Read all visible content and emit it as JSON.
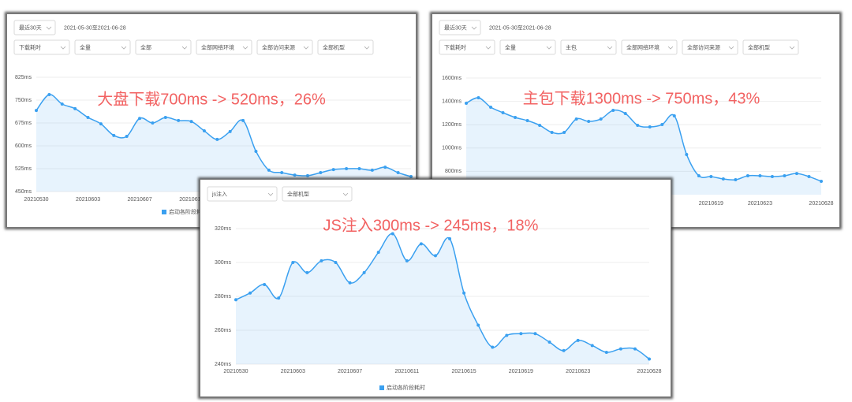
{
  "chart_data": [
    {
      "type": "line",
      "date_range": "2021-05-30至2021-06-28",
      "filters": [
        [
          "最近30天"
        ],
        [
          "下载耗时",
          "全量",
          "全部",
          "全部网络环境",
          "全部访问来源",
          "全部机型"
        ]
      ],
      "annotation": "大盘下载700ms -> 520ms，26%",
      "categories": [
        "20210530",
        null,
        null,
        null,
        "20210603",
        null,
        null,
        null,
        "20210607",
        null,
        null,
        null,
        "20210611",
        null,
        null,
        null,
        null,
        null,
        null,
        null,
        null,
        null,
        null,
        null,
        null,
        null,
        null,
        null,
        null,
        null
      ],
      "series": [
        {
          "name": "启动各阶段耗时",
          "color": "#3aa0f0",
          "values": [
            716,
            768,
            737,
            722,
            693,
            672,
            634,
            631,
            690,
            675,
            693,
            683,
            680,
            649,
            621,
            647,
            683,
            582,
            520,
            512,
            504,
            502,
            512,
            522,
            525,
            525,
            520,
            530,
            512,
            499
          ]
        }
      ],
      "ylim": [
        450,
        825
      ],
      "yticks": [
        {
          "value": 825,
          "label": "825ms"
        },
        {
          "value": 750,
          "label": "750ms"
        },
        {
          "value": 675,
          "label": "675ms"
        },
        {
          "value": 600,
          "label": "600ms"
        },
        {
          "value": 525,
          "label": "525ms"
        },
        {
          "value": 450,
          "label": "450ms"
        }
      ],
      "grid": true
    },
    {
      "type": "line",
      "date_range": "2021-05-30至2021-06-28",
      "filters": [
        [
          "最近30天"
        ],
        [
          "下载耗时",
          "全量",
          "主包",
          "全部网络环境",
          "全部访问来源",
          "全部机型"
        ]
      ],
      "annotation": "主包下载1300ms -> 750ms，43%",
      "categories": [
        null,
        null,
        null,
        null,
        null,
        null,
        null,
        null,
        null,
        null,
        null,
        null,
        null,
        null,
        null,
        null,
        null,
        null,
        null,
        null,
        "20210619",
        null,
        null,
        null,
        "20210623",
        null,
        null,
        null,
        null,
        "20210628"
      ],
      "series": [
        {
          "color": "#3aa0f0",
          "values": [
            1384,
            1431,
            1350,
            1303,
            1262,
            1235,
            1195,
            1134,
            1134,
            1249,
            1228,
            1249,
            1323,
            1296,
            1195,
            1181,
            1201,
            1276,
            945,
            762,
            755,
            735,
            728,
            762,
            762,
            755,
            762,
            782,
            755,
            715
          ]
        }
      ],
      "ylim": [
        600,
        1600
      ],
      "yticks": [
        {
          "value": 1600,
          "label": "1600ms"
        },
        {
          "value": 1400,
          "label": "1400ms"
        },
        {
          "value": 1200,
          "label": "1200ms"
        },
        {
          "value": 1000,
          "label": "1000ms"
        },
        {
          "value": 800,
          "label": "800ms"
        }
      ],
      "grid": true
    },
    {
      "type": "line",
      "filters": [
        [
          "js注入",
          "全部机型"
        ]
      ],
      "annotation": "JS注入300ms -> 245ms，18%",
      "categories": [
        "20210530",
        null,
        null,
        null,
        "20210603",
        null,
        null,
        null,
        "20210607",
        null,
        null,
        null,
        "20210611",
        null,
        null,
        null,
        "20210615",
        null,
        null,
        null,
        "20210619",
        null,
        null,
        null,
        "20210623",
        null,
        null,
        null,
        null,
        "20210628"
      ],
      "series": [
        {
          "name": "启动各阶段耗时",
          "color": "#3aa0f0",
          "values": [
            278,
            282,
            287,
            279,
            300,
            294,
            301,
            300,
            288,
            294,
            306,
            317,
            301,
            311,
            304,
            314,
            282,
            263,
            250,
            257,
            258,
            258,
            253,
            248,
            254,
            251,
            247,
            249,
            249,
            243
          ]
        }
      ],
      "ylim": [
        240,
        320
      ],
      "yticks": [
        {
          "value": 320,
          "label": "320ms"
        },
        {
          "value": 300,
          "label": "300ms"
        },
        {
          "value": 280,
          "label": "280ms"
        },
        {
          "value": 260,
          "label": "260ms"
        },
        {
          "value": 240,
          "label": "240ms"
        }
      ],
      "grid": true
    }
  ]
}
